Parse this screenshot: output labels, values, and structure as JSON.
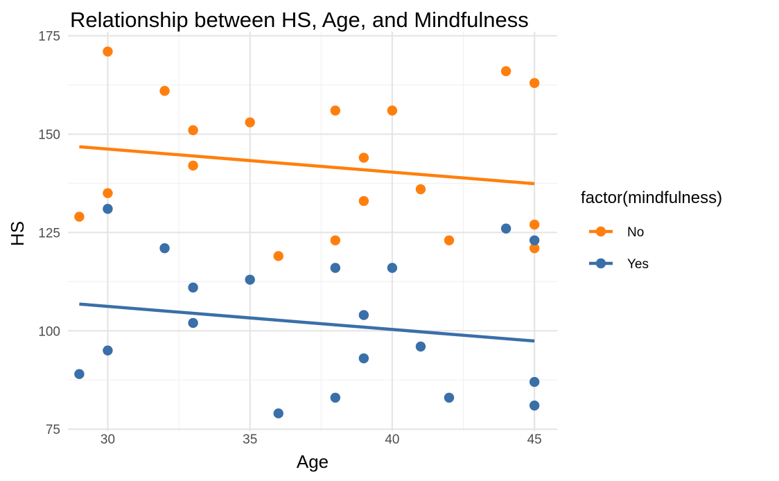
{
  "chart_data": {
    "type": "scatter",
    "title": "Relationship between HS, Age, and Mindfulness",
    "xlabel": "Age",
    "ylabel": "HS",
    "xlim": [
      28.6,
      45.8
    ],
    "ylim": [
      74.5,
      176.0
    ],
    "x_ticks": [
      30,
      35,
      40,
      45
    ],
    "y_ticks": [
      75,
      100,
      125,
      150,
      175
    ],
    "grid": true,
    "legend": {
      "title": "factor(mindfulness)",
      "placement": "right"
    },
    "series": [
      {
        "name": "No",
        "color": "#ff7f0e",
        "points": [
          {
            "x": 29,
            "y": 129
          },
          {
            "x": 30,
            "y": 171
          },
          {
            "x": 30,
            "y": 135
          },
          {
            "x": 32,
            "y": 161
          },
          {
            "x": 33,
            "y": 151
          },
          {
            "x": 33,
            "y": 142
          },
          {
            "x": 35,
            "y": 153
          },
          {
            "x": 36,
            "y": 119
          },
          {
            "x": 38,
            "y": 156
          },
          {
            "x": 38,
            "y": 123
          },
          {
            "x": 39,
            "y": 144
          },
          {
            "x": 39,
            "y": 133
          },
          {
            "x": 40,
            "y": 156
          },
          {
            "x": 41,
            "y": 136
          },
          {
            "x": 42,
            "y": 123
          },
          {
            "x": 44,
            "y": 166
          },
          {
            "x": 45,
            "y": 163
          },
          {
            "x": 45,
            "y": 127
          },
          {
            "x": 45,
            "y": 121
          }
        ],
        "fit": {
          "x": [
            29,
            45
          ],
          "y": [
            146.8,
            137.4
          ]
        }
      },
      {
        "name": "Yes",
        "color": "#3a6fa8",
        "points": [
          {
            "x": 29,
            "y": 89
          },
          {
            "x": 30,
            "y": 131
          },
          {
            "x": 30,
            "y": 95
          },
          {
            "x": 32,
            "y": 121
          },
          {
            "x": 33,
            "y": 111
          },
          {
            "x": 33,
            "y": 102
          },
          {
            "x": 35,
            "y": 113
          },
          {
            "x": 36,
            "y": 79
          },
          {
            "x": 38,
            "y": 116
          },
          {
            "x": 38,
            "y": 83
          },
          {
            "x": 39,
            "y": 104
          },
          {
            "x": 39,
            "y": 93
          },
          {
            "x": 40,
            "y": 116
          },
          {
            "x": 41,
            "y": 96
          },
          {
            "x": 42,
            "y": 83
          },
          {
            "x": 44,
            "y": 126
          },
          {
            "x": 45,
            "y": 123
          },
          {
            "x": 45,
            "y": 87
          },
          {
            "x": 45,
            "y": 81
          }
        ],
        "fit": {
          "x": [
            29,
            45
          ],
          "y": [
            106.8,
            97.4
          ]
        }
      }
    ]
  }
}
